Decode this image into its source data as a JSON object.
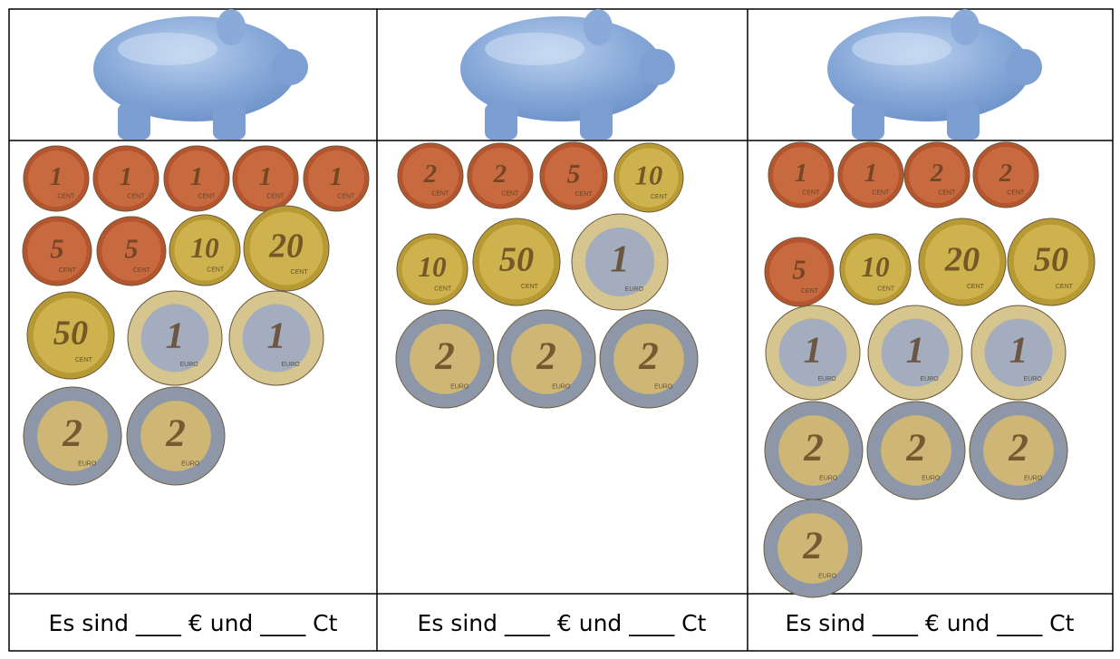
{
  "columns": [
    {
      "coins": [
        {
          "value": "1",
          "unit": "CENT"
        },
        {
          "value": "1",
          "unit": "CENT"
        },
        {
          "value": "1",
          "unit": "CENT"
        },
        {
          "value": "1",
          "unit": "CENT"
        },
        {
          "value": "1",
          "unit": "CENT"
        },
        {
          "value": "5",
          "unit": "CENT"
        },
        {
          "value": "5",
          "unit": "CENT"
        },
        {
          "value": "10",
          "unit": "CENT"
        },
        {
          "value": "20",
          "unit": "CENT"
        },
        {
          "value": "50",
          "unit": "CENT"
        },
        {
          "value": "1",
          "unit": "EURO"
        },
        {
          "value": "1",
          "unit": "EURO"
        },
        {
          "value": "2",
          "unit": "EURO"
        },
        {
          "value": "2",
          "unit": "EURO"
        }
      ],
      "answer": "Es sind ____ € und ____ Ct"
    },
    {
      "coins": [
        {
          "value": "2",
          "unit": "CENT"
        },
        {
          "value": "2",
          "unit": "CENT"
        },
        {
          "value": "5",
          "unit": "CENT"
        },
        {
          "value": "10",
          "unit": "CENT"
        },
        {
          "value": "10",
          "unit": "CENT"
        },
        {
          "value": "50",
          "unit": "CENT"
        },
        {
          "value": "1",
          "unit": "EURO"
        },
        {
          "value": "2",
          "unit": "EURO"
        },
        {
          "value": "2",
          "unit": "EURO"
        },
        {
          "value": "2",
          "unit": "EURO"
        }
      ],
      "answer": "Es sind ____ € und ____ Ct"
    },
    {
      "coins": [
        {
          "value": "1",
          "unit": "CENT"
        },
        {
          "value": "1",
          "unit": "CENT"
        },
        {
          "value": "2",
          "unit": "CENT"
        },
        {
          "value": "2",
          "unit": "CENT"
        },
        {
          "value": "5",
          "unit": "CENT"
        },
        {
          "value": "10",
          "unit": "CENT"
        },
        {
          "value": "20",
          "unit": "CENT"
        },
        {
          "value": "50",
          "unit": "CENT"
        },
        {
          "value": "1",
          "unit": "EURO"
        },
        {
          "value": "1",
          "unit": "EURO"
        },
        {
          "value": "1",
          "unit": "EURO"
        },
        {
          "value": "2",
          "unit": "EURO"
        },
        {
          "value": "2",
          "unit": "EURO"
        },
        {
          "value": "2",
          "unit": "EURO"
        },
        {
          "value": "2",
          "unit": "EURO"
        }
      ],
      "answer": "Es sind ____ € und ____ Ct"
    }
  ]
}
